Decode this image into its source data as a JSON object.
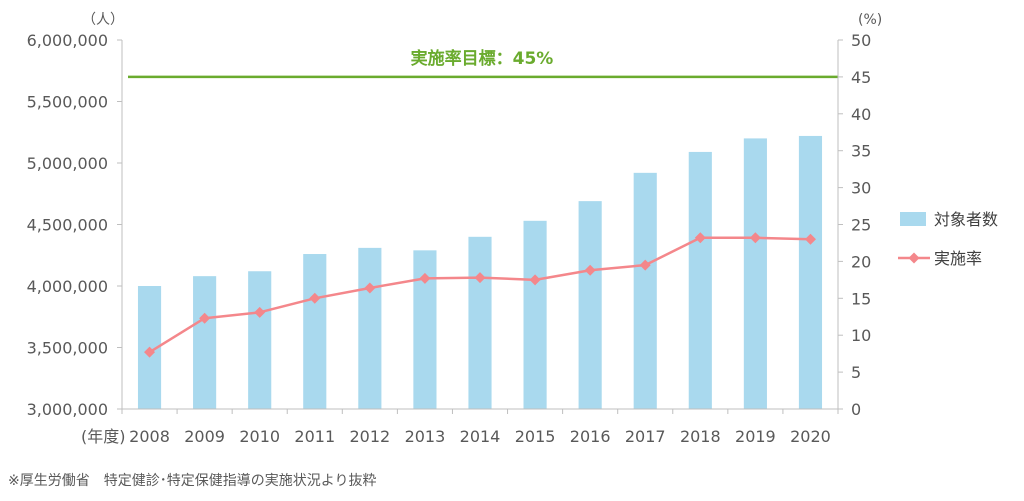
{
  "colors": {
    "bar": "#a9d9ee",
    "line": "#f4878b",
    "target": "#6aab2e",
    "axis": "#bfbfbf",
    "text": "#595959"
  },
  "source_note": "※厚生労働省　特定健診･特定保健指導の実施状況より抜粋",
  "chart_data": {
    "type": "bar+line",
    "categories": [
      "2008",
      "2009",
      "2010",
      "2011",
      "2012",
      "2013",
      "2014",
      "2015",
      "2016",
      "2017",
      "2018",
      "2019",
      "2020"
    ],
    "x_prefix": "(年度)",
    "left_axis": {
      "unit": "（人）",
      "ylim": [
        3000000,
        6000000
      ],
      "ticks": [
        "3,000,000",
        "3,500,000",
        "4,000,000",
        "4,500,000",
        "5,000,000",
        "5,500,000",
        "6,000,000"
      ],
      "tick_values": [
        3000000,
        3500000,
        4000000,
        4500000,
        5000000,
        5500000,
        6000000
      ]
    },
    "right_axis": {
      "unit": "(%)",
      "ylim": [
        0,
        50
      ],
      "ticks": [
        "0",
        "5",
        "10",
        "15",
        "20",
        "25",
        "30",
        "35",
        "40",
        "45",
        "50"
      ],
      "tick_values": [
        0,
        5,
        10,
        15,
        20,
        25,
        30,
        35,
        40,
        45,
        50
      ]
    },
    "series": [
      {
        "name": "対象者数",
        "type": "bar",
        "axis": "left",
        "values": [
          4000000,
          4080000,
          4120000,
          4260000,
          4310000,
          4290000,
          4400000,
          4530000,
          4690000,
          4920000,
          5090000,
          5200000,
          5220000
        ]
      },
      {
        "name": "実施率",
        "type": "line",
        "axis": "right",
        "marker": "diamond",
        "values": [
          7.7,
          12.3,
          13.1,
          15.0,
          16.4,
          17.7,
          17.8,
          17.5,
          18.8,
          19.5,
          23.2,
          23.2,
          23.0
        ]
      }
    ],
    "target_line": {
      "value": 45,
      "axis": "right",
      "label": "実施率目標：45%"
    },
    "legend_placement": "right",
    "grid": false
  }
}
